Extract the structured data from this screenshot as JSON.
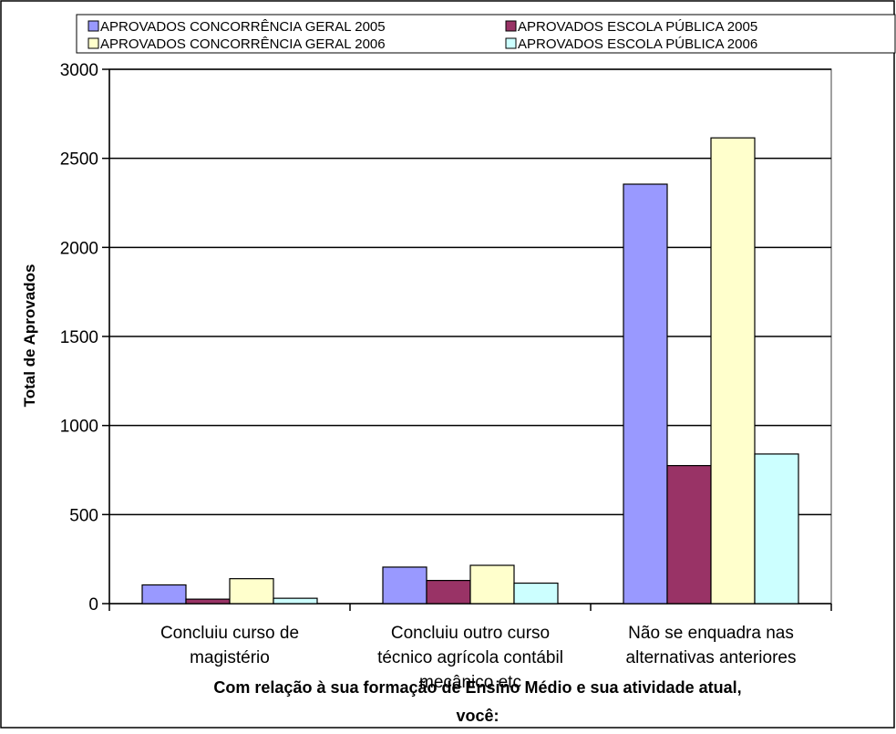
{
  "chart_data": {
    "type": "bar",
    "title": "",
    "xlabel": "Com relação à sua formação de Ensino Médio e sua atividade atual, você:",
    "ylabel": "Total de Aprovados",
    "ylim": [
      0,
      3000
    ],
    "yticks": [
      0,
      500,
      1000,
      1500,
      2000,
      2500,
      3000
    ],
    "grid": true,
    "legend_position": "top",
    "categories": [
      "Concluiu curso de magistério",
      "Concluiu outro curso técnico agrícola contábil mecânico etc",
      "Não se enquadra nas alternativas anteriores"
    ],
    "category_lines": [
      [
        "Concluiu curso de",
        "magistério"
      ],
      [
        "Concluiu outro curso",
        "técnico agrícola contábil",
        "mecânico etc"
      ],
      [
        "Não se enquadra nas",
        "alternativas anteriores"
      ]
    ],
    "xlabel_lines": [
      "Com relação à sua formação de Ensino Médio e sua atividade atual,",
      "você:"
    ],
    "series": [
      {
        "name": "APROVADOS CONCORRÊNCIA GERAL 2005",
        "color": "#9999ff",
        "values": [
          105,
          205,
          2355
        ]
      },
      {
        "name": "APROVADOS ESCOLA PÚBLICA  2005",
        "color": "#993366",
        "values": [
          25,
          130,
          775
        ]
      },
      {
        "name": "APROVADOS CONCORRÊNCIA GERAL 2006",
        "color": "#ffffcc",
        "values": [
          140,
          215,
          2615
        ]
      },
      {
        "name": "APROVADOS ESCOLA PÚBLICA  2006",
        "color": "#ccffff",
        "values": [
          30,
          115,
          840
        ]
      }
    ]
  }
}
